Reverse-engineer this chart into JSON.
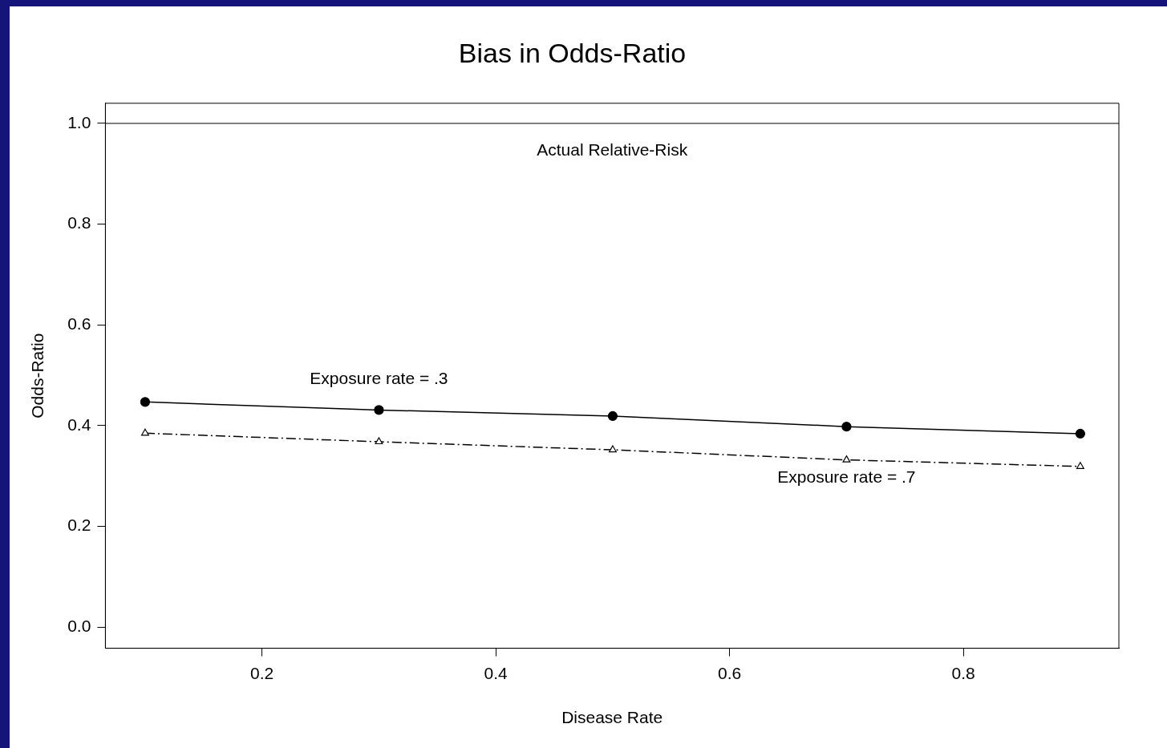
{
  "chart_data": {
    "type": "line",
    "title": "Bias in Odds-Ratio",
    "xlabel": "Disease Rate",
    "ylabel": "Odds-Ratio",
    "x": [
      0.1,
      0.3,
      0.5,
      0.7,
      0.9
    ],
    "series": [
      {
        "name": "Exposure rate = .3",
        "color": "#000000",
        "values": [
          0.447,
          0.431,
          0.419,
          0.398,
          0.384
        ],
        "marker": "circle",
        "line_style": "solid"
      },
      {
        "name": "Exposure rate = .7",
        "color": "#000000",
        "values": [
          0.385,
          0.368,
          0.352,
          0.332,
          0.319
        ],
        "marker": "triangle",
        "line_style": "dashdot"
      }
    ],
    "xlim": [
      0.066,
      0.933
    ],
    "ylim": [
      -0.042,
      1.04
    ],
    "xticks": [
      0.2,
      0.4,
      0.6,
      0.8
    ],
    "yticks": [
      {
        "value": 0,
        "label": "0.0"
      },
      0.2,
      0.4,
      0.6,
      0.8,
      {
        "value": 1,
        "label": "1.0"
      }
    ],
    "ref_lines": [
      {
        "axis": "y",
        "value": 1,
        "label": "Actual Relative-Risk",
        "color": "#000000",
        "line_style": "solid"
      }
    ],
    "grid": false,
    "legend": false
  }
}
